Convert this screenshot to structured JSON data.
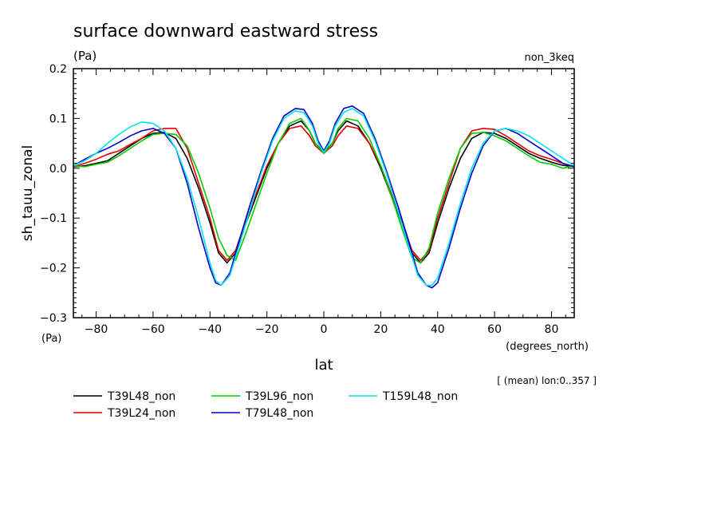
{
  "chart_data": {
    "type": "line",
    "title": "surface downward eastward stress",
    "title_units": "(Pa)",
    "experiment": "non_3keq",
    "ylabel": "sh_tauu_zonal",
    "ylabel_units": "(Pa)",
    "xlabel": "lat",
    "xlabel_units": "(degrees_north)",
    "averaging_note": "[ (mean) lon:0..357 ]",
    "xlim": [
      -88,
      88
    ],
    "ylim": [
      -0.3,
      0.2
    ],
    "x_ticks": [
      -80,
      -60,
      -40,
      -20,
      0,
      20,
      40,
      60,
      80
    ],
    "x_tick_labels": [
      "−80",
      "−60",
      "−40",
      "−20",
      "0",
      "20",
      "40",
      "60",
      "80"
    ],
    "y_ticks": [
      -0.3,
      -0.2,
      -0.1,
      0.0,
      0.1,
      0.2
    ],
    "y_tick_labels": [
      "−0.3",
      "−0.2",
      "−0.1",
      "0.0",
      "0.1",
      "0.2"
    ],
    "grid": false,
    "legend_position": "bottom-left",
    "series": [
      {
        "name": "T39L48_non",
        "color": "#000000",
        "x": [
          -88,
          -84,
          -80,
          -76,
          -72,
          -68,
          -64,
          -60,
          -56,
          -52,
          -48,
          -44,
          -40,
          -37,
          -34,
          -31,
          -28,
          -24,
          -20,
          -16,
          -12,
          -8,
          -5,
          -3,
          0,
          3,
          5,
          8,
          12,
          16,
          20,
          24,
          28,
          31,
          34,
          37,
          40,
          44,
          48,
          52,
          56,
          60,
          64,
          68,
          72,
          76,
          80,
          84,
          88
        ],
        "y": [
          0.003,
          0.005,
          0.01,
          0.015,
          0.03,
          0.045,
          0.06,
          0.07,
          0.072,
          0.06,
          0.02,
          -0.04,
          -0.11,
          -0.17,
          -0.19,
          -0.17,
          -0.12,
          -0.06,
          0.0,
          0.05,
          0.085,
          0.095,
          0.075,
          0.05,
          0.032,
          0.05,
          0.075,
          0.095,
          0.085,
          0.05,
          0.0,
          -0.06,
          -0.12,
          -0.17,
          -0.19,
          -0.17,
          -0.11,
          -0.04,
          0.02,
          0.06,
          0.072,
          0.07,
          0.06,
          0.045,
          0.03,
          0.02,
          0.012,
          0.006,
          0.003
        ]
      },
      {
        "name": "T39L24_non",
        "color": "#e00000",
        "x": [
          -88,
          -84,
          -80,
          -76,
          -72,
          -68,
          -64,
          -60,
          -56,
          -52,
          -48,
          -44,
          -40,
          -37,
          -34,
          -31,
          -28,
          -24,
          -20,
          -16,
          -12,
          -8,
          -5,
          -3,
          0,
          3,
          5,
          8,
          12,
          16,
          20,
          24,
          28,
          31,
          34,
          37,
          40,
          44,
          48,
          52,
          56,
          60,
          64,
          68,
          72,
          76,
          80,
          84,
          88
        ],
        "y": [
          0.003,
          0.01,
          0.018,
          0.028,
          0.035,
          0.048,
          0.06,
          0.075,
          0.08,
          0.08,
          0.04,
          -0.03,
          -0.1,
          -0.165,
          -0.185,
          -0.165,
          -0.115,
          -0.055,
          0.005,
          0.05,
          0.08,
          0.085,
          0.065,
          0.045,
          0.03,
          0.045,
          0.065,
          0.085,
          0.08,
          0.05,
          0.005,
          -0.055,
          -0.115,
          -0.165,
          -0.185,
          -0.165,
          -0.1,
          -0.03,
          0.04,
          0.075,
          0.08,
          0.078,
          0.065,
          0.05,
          0.035,
          0.025,
          0.018,
          0.01,
          0.003
        ]
      },
      {
        "name": "T39L96_non",
        "color": "#00cc00",
        "x": [
          -88,
          -84,
          -80,
          -76,
          -72,
          -68,
          -64,
          -60,
          -56,
          -52,
          -48,
          -44,
          -40,
          -37,
          -34,
          -31,
          -28,
          -24,
          -20,
          -16,
          -12,
          -8,
          -5,
          -3,
          0,
          3,
          5,
          8,
          12,
          16,
          20,
          24,
          28,
          31,
          34,
          37,
          40,
          44,
          48,
          52,
          56,
          60,
          64,
          68,
          72,
          76,
          80,
          84,
          88
        ],
        "y": [
          0.005,
          0.003,
          0.008,
          0.012,
          0.025,
          0.04,
          0.055,
          0.068,
          0.07,
          0.068,
          0.045,
          -0.01,
          -0.08,
          -0.14,
          -0.175,
          -0.185,
          -0.14,
          -0.075,
          -0.01,
          0.05,
          0.09,
          0.1,
          0.075,
          0.05,
          0.03,
          0.05,
          0.08,
          0.1,
          0.095,
          0.06,
          0.005,
          -0.06,
          -0.13,
          -0.18,
          -0.19,
          -0.16,
          -0.09,
          -0.02,
          0.04,
          0.07,
          0.072,
          0.065,
          0.055,
          0.04,
          0.025,
          0.012,
          0.008,
          0.0,
          0.005
        ]
      },
      {
        "name": "T79L48_non",
        "color": "#0000cc",
        "x": [
          -88,
          -84,
          -80,
          -76,
          -72,
          -68,
          -64,
          -60,
          -56,
          -52,
          -48,
          -44,
          -40,
          -38,
          -36,
          -33,
          -30,
          -26,
          -22,
          -18,
          -14,
          -10,
          -7,
          -4,
          -2,
          0,
          2,
          4,
          7,
          10,
          14,
          18,
          22,
          26,
          30,
          33,
          36,
          38,
          40,
          44,
          48,
          52,
          56,
          60,
          64,
          68,
          72,
          76,
          80,
          84,
          88
        ],
        "y": [
          0.005,
          0.018,
          0.03,
          0.04,
          0.052,
          0.065,
          0.075,
          0.08,
          0.07,
          0.04,
          -0.03,
          -0.12,
          -0.2,
          -0.23,
          -0.235,
          -0.21,
          -0.15,
          -0.075,
          -0.005,
          0.06,
          0.105,
          0.12,
          0.118,
          0.09,
          0.055,
          0.035,
          0.055,
          0.09,
          0.12,
          0.125,
          0.11,
          0.06,
          -0.005,
          -0.075,
          -0.15,
          -0.21,
          -0.235,
          -0.24,
          -0.23,
          -0.16,
          -0.08,
          -0.01,
          0.045,
          0.075,
          0.08,
          0.07,
          0.055,
          0.04,
          0.025,
          0.01,
          0.003
        ]
      },
      {
        "name": "T159L48_non",
        "color": "#00e5ee",
        "x": [
          -88,
          -84,
          -80,
          -76,
          -72,
          -68,
          -64,
          -60,
          -56,
          -52,
          -48,
          -44,
          -40,
          -38,
          -36,
          -33,
          -30,
          -26,
          -22,
          -18,
          -14,
          -10,
          -7,
          -4,
          -2,
          0,
          2,
          4,
          7,
          10,
          14,
          18,
          22,
          26,
          30,
          33,
          36,
          38,
          40,
          44,
          48,
          52,
          56,
          60,
          64,
          68,
          72,
          76,
          80,
          84,
          88
        ],
        "y": [
          0.005,
          0.015,
          0.03,
          0.05,
          0.068,
          0.083,
          0.093,
          0.09,
          0.075,
          0.04,
          -0.02,
          -0.1,
          -0.19,
          -0.225,
          -0.235,
          -0.215,
          -0.16,
          -0.085,
          -0.01,
          0.055,
          0.1,
          0.115,
          0.112,
          0.085,
          0.05,
          0.032,
          0.05,
          0.085,
          0.112,
          0.12,
          0.105,
          0.055,
          -0.01,
          -0.085,
          -0.16,
          -0.215,
          -0.235,
          -0.235,
          -0.22,
          -0.15,
          -0.07,
          0.0,
          0.05,
          0.075,
          0.08,
          0.075,
          0.065,
          0.05,
          0.035,
          0.02,
          0.005
        ]
      }
    ]
  }
}
